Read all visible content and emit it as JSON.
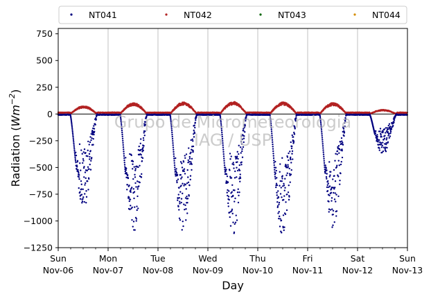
{
  "chart_data": {
    "type": "scatter",
    "title": "",
    "xlabel": "Day",
    "ylabel_main": "Radiation (",
    "ylabel_unit_base": "Wm",
    "ylabel_unit_exp": "−2",
    "ylabel_close": ")",
    "ylim": [
      -1250,
      800
    ],
    "yticks": [
      -1250,
      -1000,
      -750,
      -500,
      -250,
      0,
      250,
      500,
      750
    ],
    "ytick_labels": [
      "−1250",
      "−1000",
      "−750",
      "−500",
      "−250",
      "0",
      "250",
      "500",
      "750"
    ],
    "xlim": [
      0,
      7
    ],
    "x_units": "days since Sun Nov-06",
    "xticks": [
      {
        "day": "Sun",
        "date": "Nov-06"
      },
      {
        "day": "Mon",
        "date": "Nov-07"
      },
      {
        "day": "Tue",
        "date": "Nov-08"
      },
      {
        "day": "Wed",
        "date": "Nov-09"
      },
      {
        "day": "Thu",
        "date": "Nov-10"
      },
      {
        "day": "Fri",
        "date": "Nov-11"
      },
      {
        "day": "Sat",
        "date": "Nov-12"
      },
      {
        "day": "Sun",
        "date": "Nov-13"
      }
    ],
    "grid": "vertical",
    "legend_position": "top",
    "series": [
      {
        "name": "NT041",
        "color": "#00007f",
        "marker": "dot"
      },
      {
        "name": "NT042",
        "color": "#b22222",
        "marker": "dot"
      },
      {
        "name": "NT043",
        "color": "#006400",
        "marker": "dot"
      },
      {
        "name": "NT044",
        "color": "#d48c00",
        "marker": "dot"
      }
    ],
    "daily_profile": {
      "days": [
        {
          "day": "Sun Nov-06",
          "sunrise": 0.24,
          "sunset": 0.78,
          "min_NT041": -880,
          "max_NT042": 75
        },
        {
          "day": "Mon Nov-07",
          "sunrise": 0.24,
          "sunset": 0.78,
          "min_NT041": -1120,
          "max_NT042": 105
        },
        {
          "day": "Tue Nov-08",
          "sunrise": 0.24,
          "sunset": 0.78,
          "min_NT041": -1130,
          "max_NT042": 110
        },
        {
          "day": "Wed Nov-09",
          "sunrise": 0.24,
          "sunset": 0.78,
          "min_NT041": -1130,
          "max_NT042": 115
        },
        {
          "day": "Thu Nov-10",
          "sunrise": 0.24,
          "sunset": 0.78,
          "min_NT041": -1180,
          "max_NT042": 110
        },
        {
          "day": "Fri Nov-11",
          "sunrise": 0.24,
          "sunset": 0.78,
          "min_NT041": -1080,
          "max_NT042": 105
        },
        {
          "day": "Sat Nov-12",
          "sunrise": 0.24,
          "sunset": 0.78,
          "min_NT041": -380,
          "max_NT042": 40
        }
      ]
    },
    "watermark_line1": "Grupo de Micrometeorologia",
    "watermark_line2": "IAG / USP"
  }
}
